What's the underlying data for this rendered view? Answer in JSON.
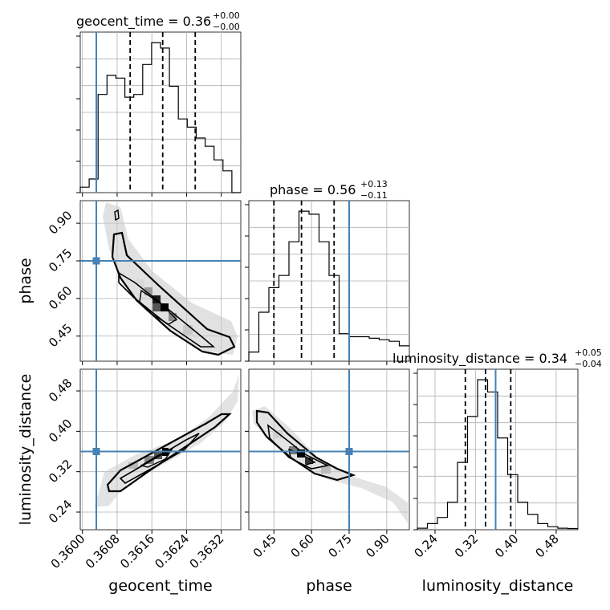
{
  "chart_data": {
    "type": "corner",
    "parameters": [
      "geocent_time",
      "phase",
      "luminosity_distance"
    ],
    "truths": {
      "geocent_time": 0.36032,
      "phase": 0.75,
      "luminosity_distance": 0.36
    },
    "truth_color": "#4682b4",
    "titles": {
      "geocent_time": {
        "label": "geocent_time = 0.36",
        "plus": "+0.00",
        "minus": "−0.00"
      },
      "phase": {
        "label": "phase = 0.56",
        "plus": "+0.13",
        "minus": "−0.11"
      },
      "luminosity_distance": {
        "label": "luminosity_distance = 0.34",
        "plus": "+0.05",
        "minus": "−0.04"
      }
    },
    "axis_labels": {
      "geocent_time": "geocent_time",
      "phase": "phase",
      "luminosity_distance": "luminosity_distance"
    },
    "ranges": {
      "geocent_time": [
        0.35995,
        0.36365
      ],
      "phase": [
        0.35,
        0.99
      ],
      "luminosity_distance": [
        0.205,
        0.523
      ]
    },
    "ticks": {
      "geocent_time": {
        "values": [
          0.36,
          0.3608,
          0.3616,
          0.3624,
          0.3632
        ],
        "labels": [
          "0.3600",
          "0.3608",
          "0.3616",
          "0.3624",
          "0.3632"
        ]
      },
      "phase": {
        "values": [
          0.45,
          0.6,
          0.75,
          0.9
        ],
        "labels": [
          "0.45",
          "0.60",
          "0.75",
          "0.90"
        ]
      },
      "luminosity_distance": {
        "values": [
          0.24,
          0.32,
          0.4,
          0.48
        ],
        "labels": [
          "0.24",
          "0.32",
          "0.40",
          "0.48"
        ]
      }
    },
    "quantiles": {
      "geocent_time": [
        0.3611,
        0.36185,
        0.3626
      ],
      "phase": [
        0.45,
        0.56,
        0.69
      ],
      "luminosity_distance": [
        0.3,
        0.34,
        0.39
      ]
    },
    "histograms": {
      "geocent_time": [
        0.2,
        0.5,
        3.6,
        4.3,
        4.2,
        3.5,
        3.6,
        4.7,
        5.5,
        5.3,
        3.9,
        2.7,
        2.4,
        2.0,
        1.7,
        1.2,
        0.8,
        0
      ],
      "phase": [
        0.3,
        1.6,
        2.4,
        2.8,
        3.9,
        4.9,
        4.8,
        3.9,
        2.8,
        0.9,
        0.8,
        0.8,
        0.75,
        0.7,
        0.65,
        0.5
      ],
      "luminosity_distance": [
        0.05,
        0.2,
        0.4,
        0.9,
        2.2,
        3.7,
        4.9,
        4.5,
        3.0,
        1.8,
        0.9,
        0.5,
        0.2,
        0.1,
        0.05,
        0.04
      ]
    },
    "grid": true
  }
}
